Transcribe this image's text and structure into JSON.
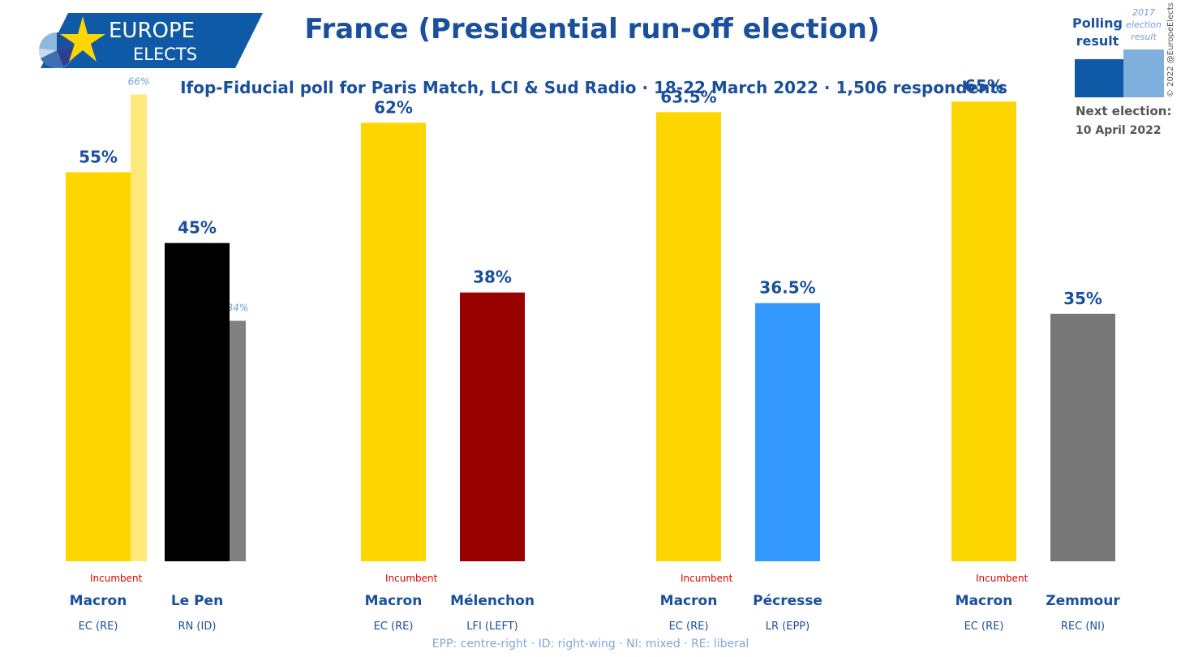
{
  "logo": {
    "line1": "EUROPE",
    "line2": "ELECTS"
  },
  "header": {
    "title": "France (Presidential run-off election)",
    "subtitle": "Ifop-Fiducial poll for Paris Match, LCI & Sud Radio · 18-22 March 2022 · 1,506 respondents"
  },
  "legend": {
    "polling": "Polling result",
    "previous": "2017 election result",
    "next_label": "Next election:",
    "next_date": "10 April 2022",
    "copyright": "© 2022 @EuropeElects"
  },
  "footer": "EPP: centre-right · ID: right-wing · NI: mixed · RE: liberal",
  "chart_data": {
    "type": "bar",
    "ylim": [
      0,
      70
    ],
    "colors": {
      "value_label": "#1a4f9c",
      "name_label": "#1a4f9c",
      "incumbent": "#e00000",
      "prev_label": "#6fa0d8"
    },
    "matchups": [
      {
        "candidates": [
          {
            "name": "Macron",
            "party": "EC (RE)",
            "value": 55,
            "label": "55%",
            "color": "#fdd600",
            "incumbent": "Incumbent",
            "prev": 66,
            "prev_label": "66%",
            "prev_color": "#ffe97a"
          },
          {
            "name": "Le Pen",
            "party": "RN (ID)",
            "value": 45,
            "label": "45%",
            "color": "#000000",
            "prev": 34,
            "prev_label": "34%",
            "prev_color": "#808080"
          }
        ]
      },
      {
        "candidates": [
          {
            "name": "Macron",
            "party": "EC (RE)",
            "value": 62,
            "label": "62%",
            "color": "#fdd600",
            "incumbent": "Incumbent"
          },
          {
            "name": "Mélenchon",
            "party": "LFI (LEFT)",
            "value": 38,
            "label": "38%",
            "color": "#990000"
          }
        ]
      },
      {
        "candidates": [
          {
            "name": "Macron",
            "party": "EC (RE)",
            "value": 63.5,
            "label": "63.5%",
            "color": "#fdd600",
            "incumbent": "Incumbent"
          },
          {
            "name": "Pécresse",
            "party": "LR (EPP)",
            "value": 36.5,
            "label": "36.5%",
            "color": "#3399ff"
          }
        ]
      },
      {
        "candidates": [
          {
            "name": "Macron",
            "party": "EC (RE)",
            "value": 65,
            "label": "65%",
            "color": "#fdd600",
            "incumbent": "Incumbent"
          },
          {
            "name": "Zemmour",
            "party": "REC (NI)",
            "value": 35,
            "label": "35%",
            "color": "#777777"
          }
        ]
      }
    ]
  }
}
